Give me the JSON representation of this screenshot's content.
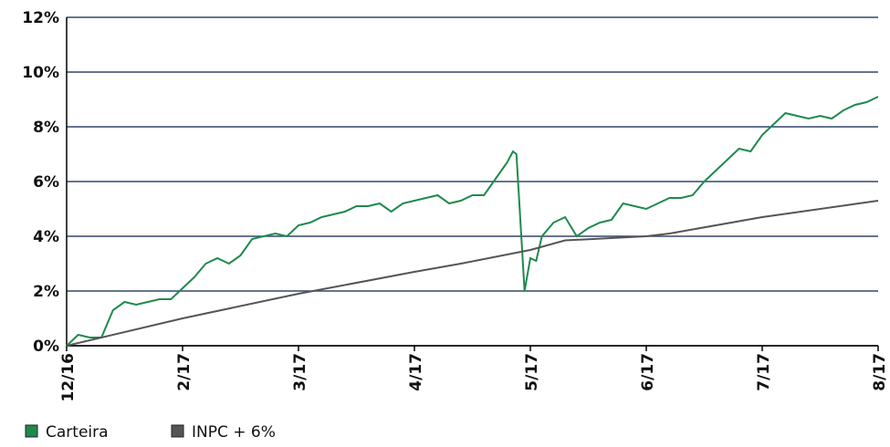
{
  "chart_data": {
    "type": "line",
    "xlim": [
      0,
      7
    ],
    "xticks": [
      {
        "value": 0,
        "label": "12/16"
      },
      {
        "value": 1,
        "label": "2/17"
      },
      {
        "value": 2,
        "label": "3/17"
      },
      {
        "value": 3,
        "label": "4/17"
      },
      {
        "value": 4,
        "label": "5/17"
      },
      {
        "value": 5,
        "label": "6/17"
      },
      {
        "value": 6,
        "label": "7/17"
      },
      {
        "value": 7,
        "label": "8/17"
      }
    ],
    "ylim": [
      0,
      12
    ],
    "yticks": [
      {
        "value": 0,
        "label": "0%"
      },
      {
        "value": 2,
        "label": "2%"
      },
      {
        "value": 4,
        "label": "4%"
      },
      {
        "value": 6,
        "label": "6%"
      },
      {
        "value": 8,
        "label": "8%"
      },
      {
        "value": 10,
        "label": "10%"
      },
      {
        "value": 12,
        "label": "12%"
      }
    ],
    "grid": true,
    "legend": "bottom-left",
    "series": [
      {
        "name": "Carteira",
        "color": "#1e8a4e",
        "x": [
          0,
          0.1,
          0.2,
          0.3,
          0.4,
          0.5,
          0.6,
          0.7,
          0.8,
          0.9,
          1.0,
          1.1,
          1.2,
          1.3,
          1.4,
          1.5,
          1.6,
          1.7,
          1.8,
          1.9,
          2.0,
          2.1,
          2.2,
          2.3,
          2.4,
          2.5,
          2.6,
          2.7,
          2.8,
          2.9,
          3.0,
          3.1,
          3.2,
          3.3,
          3.4,
          3.5,
          3.6,
          3.7,
          3.8,
          3.85,
          3.88,
          3.95,
          4.0,
          4.05,
          4.1,
          4.2,
          4.3,
          4.4,
          4.5,
          4.6,
          4.7,
          4.8,
          4.9,
          5.0,
          5.1,
          5.2,
          5.3,
          5.4,
          5.5,
          5.6,
          5.7,
          5.8,
          5.9,
          6.0,
          6.1,
          6.2,
          6.3,
          6.4,
          6.5,
          6.6,
          6.7,
          6.8,
          6.9,
          7.0
        ],
        "values": [
          0.0,
          0.4,
          0.3,
          0.3,
          1.3,
          1.6,
          1.5,
          1.6,
          1.7,
          1.7,
          2.1,
          2.5,
          3.0,
          3.2,
          3.0,
          3.3,
          3.9,
          4.0,
          4.1,
          4.0,
          4.4,
          4.5,
          4.7,
          4.8,
          4.9,
          5.1,
          5.1,
          5.2,
          4.9,
          5.2,
          5.3,
          5.4,
          5.5,
          5.2,
          5.3,
          5.5,
          5.5,
          6.1,
          6.7,
          7.1,
          7.0,
          2.0,
          3.2,
          3.1,
          4.0,
          4.5,
          4.7,
          4.0,
          4.3,
          4.5,
          4.6,
          5.2,
          5.1,
          5.0,
          5.2,
          5.4,
          5.4,
          5.5,
          6.0,
          6.4,
          6.8,
          7.2,
          7.1,
          7.7,
          8.1,
          8.5,
          8.4,
          8.3,
          8.4,
          8.3,
          8.6,
          8.8,
          8.9,
          9.1
        ]
      },
      {
        "name": "INPC + 6%",
        "color": "#555555",
        "x": [
          0,
          1,
          2,
          3,
          3.4,
          4,
          4.3,
          5,
          5.2,
          6,
          7
        ],
        "values": [
          0.0,
          1.0,
          1.9,
          2.7,
          3.0,
          3.5,
          3.85,
          4.0,
          4.1,
          4.7,
          5.3
        ]
      }
    ]
  }
}
